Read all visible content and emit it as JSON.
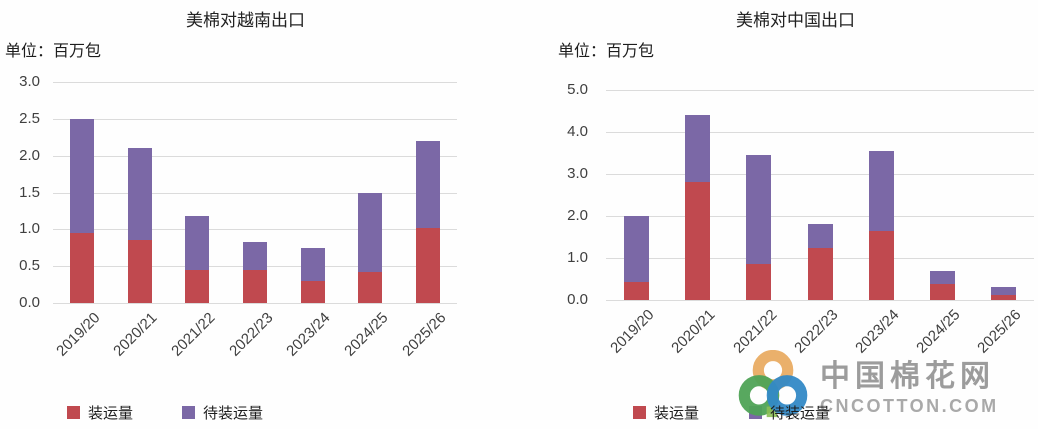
{
  "legend": {
    "shipped_label": "装运量",
    "pending_label": "待装运量"
  },
  "colors": {
    "shipped": "#C0494F",
    "pending": "#7B68A6",
    "gridline": "#DBDBDB",
    "axis_text": "#3F3F3F",
    "watermark_text": "#9C9C9C"
  },
  "watermark": {
    "site_name": "中国棉花网",
    "site_domain": "CNCOTTON.COM",
    "logo": "cotton-rings-logo",
    "ring_colors": {
      "top": "#E9AC63",
      "left": "#4FA356",
      "right": "#3389C6",
      "center_square": "#8CBF55"
    }
  },
  "chart_data": [
    {
      "type": "bar",
      "stacked": true,
      "title": "美棉对越南出口",
      "unit_label": "单位：百万包",
      "categories": [
        "2019/20",
        "2020/21",
        "2021/22",
        "2022/23",
        "2023/24",
        "2024/25",
        "2025/26"
      ],
      "series": [
        {
          "name": "装运量",
          "color_key": "shipped",
          "values": [
            0.95,
            0.85,
            0.45,
            0.45,
            0.3,
            0.42,
            1.02
          ]
        },
        {
          "name": "待装运量",
          "color_key": "pending",
          "values": [
            1.55,
            1.25,
            0.73,
            0.38,
            0.45,
            1.08,
            1.18
          ]
        }
      ],
      "totals": [
        2.5,
        2.1,
        1.18,
        0.83,
        0.75,
        1.5,
        2.2
      ],
      "ylim": [
        0,
        3.0
      ],
      "yticks": [
        "3.0",
        "2.5",
        "2.0",
        "1.5",
        "1.0",
        "0.5",
        "0.0"
      ],
      "grid": true,
      "legend_position": "bottom"
    },
    {
      "type": "bar",
      "stacked": true,
      "title": "美棉对中国出口",
      "unit_label": "单位：百万包",
      "categories": [
        "2019/20",
        "2020/21",
        "2021/22",
        "2022/23",
        "2023/24",
        "2024/25",
        "2025/26"
      ],
      "series": [
        {
          "name": "装运量",
          "color_key": "shipped",
          "values": [
            0.42,
            2.8,
            0.85,
            1.25,
            1.65,
            0.37,
            0.13
          ]
        },
        {
          "name": "待装运量",
          "color_key": "pending",
          "values": [
            1.58,
            1.6,
            2.6,
            0.55,
            1.9,
            0.33,
            0.17
          ]
        }
      ],
      "totals": [
        2.0,
        4.4,
        3.45,
        1.8,
        3.55,
        0.7,
        0.3
      ],
      "ylim": [
        0,
        5.0
      ],
      "yticks": [
        "5.0",
        "4.0",
        "3.0",
        "2.0",
        "1.0",
        "0.0"
      ],
      "grid": true,
      "legend_position": "bottom"
    }
  ]
}
